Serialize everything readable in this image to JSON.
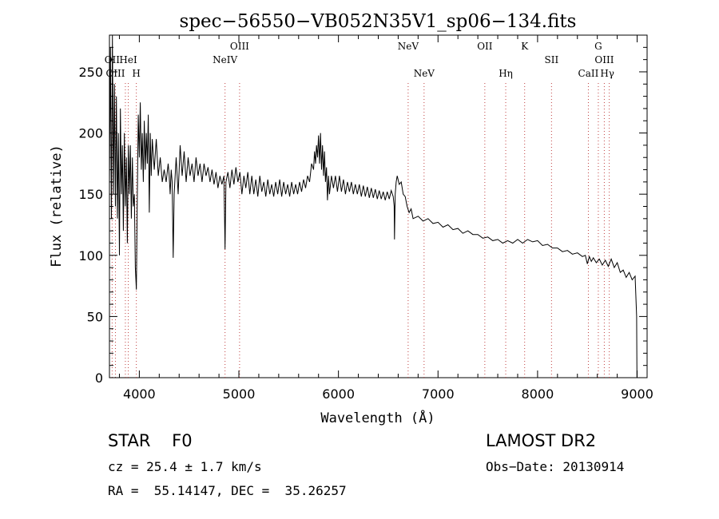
{
  "chart_data": {
    "type": "line",
    "title": "spec−56550−VB052N35V1_sp06−134.fits",
    "xlabel": "Wavelength (Å)",
    "ylabel": "Flux (relative)",
    "xlim": [
      3700,
      9100
    ],
    "ylim": [
      0,
      280
    ],
    "xticks": [
      4000,
      5000,
      6000,
      7000,
      8000,
      9000
    ],
    "yticks": [
      0,
      50,
      100,
      150,
      200,
      250
    ],
    "grid": false,
    "series": [
      {
        "values": [
          [
            3700,
            160
          ],
          [
            3710,
            270
          ],
          [
            3720,
            130
          ],
          [
            3730,
            280
          ],
          [
            3740,
            150
          ],
          [
            3750,
            240
          ],
          [
            3760,
            140
          ],
          [
            3770,
            230
          ],
          [
            3780,
            130
          ],
          [
            3790,
            200
          ],
          [
            3800,
            100
          ],
          [
            3810,
            220
          ],
          [
            3820,
            150
          ],
          [
            3830,
            190
          ],
          [
            3840,
            120
          ],
          [
            3850,
            200
          ],
          [
            3860,
            140
          ],
          [
            3870,
            180
          ],
          [
            3880,
            110
          ],
          [
            3890,
            190
          ],
          [
            3900,
            150
          ],
          [
            3910,
            190
          ],
          [
            3920,
            130
          ],
          [
            3930,
            180
          ],
          [
            3940,
            140
          ],
          [
            3950,
            150
          ],
          [
            3960,
            90
          ],
          [
            3970,
            72
          ],
          [
            3980,
            150
          ],
          [
            3990,
            215
          ],
          [
            4000,
            180
          ],
          [
            4010,
            225
          ],
          [
            4020,
            170
          ],
          [
            4030,
            200
          ],
          [
            4040,
            160
          ],
          [
            4050,
            210
          ],
          [
            4060,
            170
          ],
          [
            4070,
            200
          ],
          [
            4080,
            175
          ],
          [
            4090,
            215
          ],
          [
            4100,
            135
          ],
          [
            4110,
            200
          ],
          [
            4120,
            165
          ],
          [
            4130,
            195
          ],
          [
            4150,
            170
          ],
          [
            4170,
            195
          ],
          [
            4190,
            165
          ],
          [
            4210,
            180
          ],
          [
            4230,
            160
          ],
          [
            4250,
            170
          ],
          [
            4270,
            160
          ],
          [
            4290,
            175
          ],
          [
            4300,
            165
          ],
          [
            4310,
            150
          ],
          [
            4320,
            170
          ],
          [
            4330,
            160
          ],
          [
            4340,
            98
          ],
          [
            4350,
            150
          ],
          [
            4370,
            180
          ],
          [
            4390,
            150
          ],
          [
            4410,
            190
          ],
          [
            4430,
            165
          ],
          [
            4450,
            185
          ],
          [
            4470,
            160
          ],
          [
            4490,
            180
          ],
          [
            4510,
            165
          ],
          [
            4530,
            175
          ],
          [
            4550,
            160
          ],
          [
            4570,
            180
          ],
          [
            4590,
            165
          ],
          [
            4610,
            175
          ],
          [
            4630,
            160
          ],
          [
            4650,
            175
          ],
          [
            4670,
            165
          ],
          [
            4690,
            172
          ],
          [
            4710,
            160
          ],
          [
            4730,
            170
          ],
          [
            4750,
            158
          ],
          [
            4770,
            168
          ],
          [
            4790,
            155
          ],
          [
            4810,
            165
          ],
          [
            4830,
            158
          ],
          [
            4850,
            165
          ],
          [
            4861,
            105
          ],
          [
            4870,
            160
          ],
          [
            4890,
            168
          ],
          [
            4910,
            155
          ],
          [
            4930,
            170
          ],
          [
            4950,
            158
          ],
          [
            4970,
            172
          ],
          [
            4990,
            160
          ],
          [
            5010,
            168
          ],
          [
            5030,
            150
          ],
          [
            5050,
            165
          ],
          [
            5070,
            155
          ],
          [
            5090,
            168
          ],
          [
            5110,
            150
          ],
          [
            5130,
            165
          ],
          [
            5150,
            150
          ],
          [
            5170,
            162
          ],
          [
            5190,
            148
          ],
          [
            5210,
            165
          ],
          [
            5230,
            152
          ],
          [
            5250,
            160
          ],
          [
            5270,
            148
          ],
          [
            5290,
            162
          ],
          [
            5310,
            150
          ],
          [
            5330,
            158
          ],
          [
            5350,
            148
          ],
          [
            5370,
            160
          ],
          [
            5390,
            150
          ],
          [
            5410,
            162
          ],
          [
            5430,
            148
          ],
          [
            5450,
            160
          ],
          [
            5470,
            150
          ],
          [
            5490,
            158
          ],
          [
            5510,
            148
          ],
          [
            5530,
            160
          ],
          [
            5550,
            150
          ],
          [
            5570,
            158
          ],
          [
            5590,
            150
          ],
          [
            5610,
            160
          ],
          [
            5630,
            152
          ],
          [
            5650,
            162
          ],
          [
            5670,
            155
          ],
          [
            5690,
            165
          ],
          [
            5710,
            160
          ],
          [
            5730,
            175
          ],
          [
            5750,
            170
          ],
          [
            5760,
            185
          ],
          [
            5770,
            175
          ],
          [
            5780,
            190
          ],
          [
            5790,
            180
          ],
          [
            5800,
            198
          ],
          [
            5810,
            175
          ],
          [
            5820,
            200
          ],
          [
            5830,
            170
          ],
          [
            5840,
            190
          ],
          [
            5850,
            165
          ],
          [
            5860,
            185
          ],
          [
            5870,
            160
          ],
          [
            5880,
            172
          ],
          [
            5890,
            145
          ],
          [
            5900,
            165
          ],
          [
            5910,
            150
          ],
          [
            5930,
            165
          ],
          [
            5950,
            155
          ],
          [
            5970,
            165
          ],
          [
            5990,
            152
          ],
          [
            6010,
            165
          ],
          [
            6030,
            152
          ],
          [
            6050,
            162
          ],
          [
            6070,
            150
          ],
          [
            6090,
            160
          ],
          [
            6110,
            152
          ],
          [
            6130,
            160
          ],
          [
            6150,
            150
          ],
          [
            6170,
            158
          ],
          [
            6190,
            150
          ],
          [
            6210,
            158
          ],
          [
            6230,
            148
          ],
          [
            6250,
            157
          ],
          [
            6270,
            148
          ],
          [
            6290,
            156
          ],
          [
            6310,
            147
          ],
          [
            6330,
            155
          ],
          [
            6350,
            147
          ],
          [
            6370,
            154
          ],
          [
            6390,
            146
          ],
          [
            6410,
            153
          ],
          [
            6430,
            146
          ],
          [
            6450,
            152
          ],
          [
            6470,
            145
          ],
          [
            6490,
            152
          ],
          [
            6510,
            146
          ],
          [
            6530,
            153
          ],
          [
            6550,
            148
          ],
          [
            6560,
            140
          ],
          [
            6563,
            113
          ],
          [
            6570,
            150
          ],
          [
            6580,
            160
          ],
          [
            6590,
            165
          ],
          [
            6610,
            158
          ],
          [
            6630,
            160
          ],
          [
            6650,
            150
          ],
          [
            6670,
            148
          ],
          [
            6690,
            140
          ],
          [
            6710,
            135
          ],
          [
            6730,
            138
          ],
          [
            6750,
            130
          ],
          [
            6800,
            132
          ],
          [
            6850,
            128
          ],
          [
            6900,
            130
          ],
          [
            6950,
            126
          ],
          [
            7000,
            127
          ],
          [
            7050,
            123
          ],
          [
            7100,
            125
          ],
          [
            7150,
            121
          ],
          [
            7200,
            122
          ],
          [
            7250,
            118
          ],
          [
            7300,
            120
          ],
          [
            7350,
            117
          ],
          [
            7400,
            117
          ],
          [
            7450,
            114
          ],
          [
            7500,
            115
          ],
          [
            7550,
            112
          ],
          [
            7600,
            113
          ],
          [
            7650,
            110
          ],
          [
            7700,
            112
          ],
          [
            7750,
            110
          ],
          [
            7800,
            113
          ],
          [
            7850,
            110
          ],
          [
            7900,
            113
          ],
          [
            7950,
            111
          ],
          [
            8000,
            112
          ],
          [
            8050,
            108
          ],
          [
            8100,
            109
          ],
          [
            8150,
            106
          ],
          [
            8200,
            106
          ],
          [
            8250,
            103
          ],
          [
            8300,
            104
          ],
          [
            8350,
            101
          ],
          [
            8400,
            102
          ],
          [
            8450,
            99
          ],
          [
            8480,
            100
          ],
          [
            8500,
            93
          ],
          [
            8520,
            99
          ],
          [
            8540,
            95
          ],
          [
            8560,
            98
          ],
          [
            8590,
            94
          ],
          [
            8620,
            97
          ],
          [
            8650,
            92
          ],
          [
            8680,
            96
          ],
          [
            8710,
            91
          ],
          [
            8740,
            97
          ],
          [
            8770,
            90
          ],
          [
            8800,
            94
          ],
          [
            8830,
            86
          ],
          [
            8860,
            88
          ],
          [
            8890,
            82
          ],
          [
            8920,
            86
          ],
          [
            8950,
            80
          ],
          [
            8980,
            83
          ],
          [
            8995,
            50
          ],
          [
            8998,
            0
          ]
        ]
      }
    ],
    "annotations": [
      {
        "label": "OII",
        "x": 3727,
        "row": 2
      },
      {
        "label": "HeI",
        "x": 3889,
        "row": 2
      },
      {
        "label": "OIII",
        "x": 3760,
        "row": 3
      },
      {
        "label": "H",
        "x": 3970,
        "row": 3
      },
      {
        "label": "OIII",
        "x": 5007,
        "row": 1
      },
      {
        "label": "NeIV",
        "x": 4861,
        "row": 2
      },
      {
        "label": "NeV",
        "x": 6700,
        "row": 1
      },
      {
        "label": "NeV",
        "x": 6860,
        "row": 3
      },
      {
        "label": "OII",
        "x": 7470,
        "row": 1
      },
      {
        "label": "Hη",
        "x": 7680,
        "row": 3
      },
      {
        "label": "K",
        "x": 7870,
        "row": 1
      },
      {
        "label": "SII",
        "x": 8140,
        "row": 2
      },
      {
        "label": "G",
        "x": 8610,
        "row": 1
      },
      {
        "label": "OIII",
        "x": 8670,
        "row": 2
      },
      {
        "label": "CaII",
        "x": 8510,
        "row": 3
      },
      {
        "label": "Hγ",
        "x": 8700,
        "row": 3
      }
    ],
    "annotation_lines": [
      3727,
      3760,
      3860,
      3889,
      3970,
      4861,
      5007,
      6700,
      6860,
      7470,
      7680,
      7870,
      8140,
      8510,
      8610,
      8670,
      8720
    ]
  },
  "info": {
    "class_label": "STAR    F0",
    "survey": "LAMOST DR2",
    "cz": "cz = 25.4 ± 1.7 km/s",
    "obs_date": "Obs−Date: 20130914",
    "coords": "RA =  55.14147, DEC =  35.26257"
  }
}
